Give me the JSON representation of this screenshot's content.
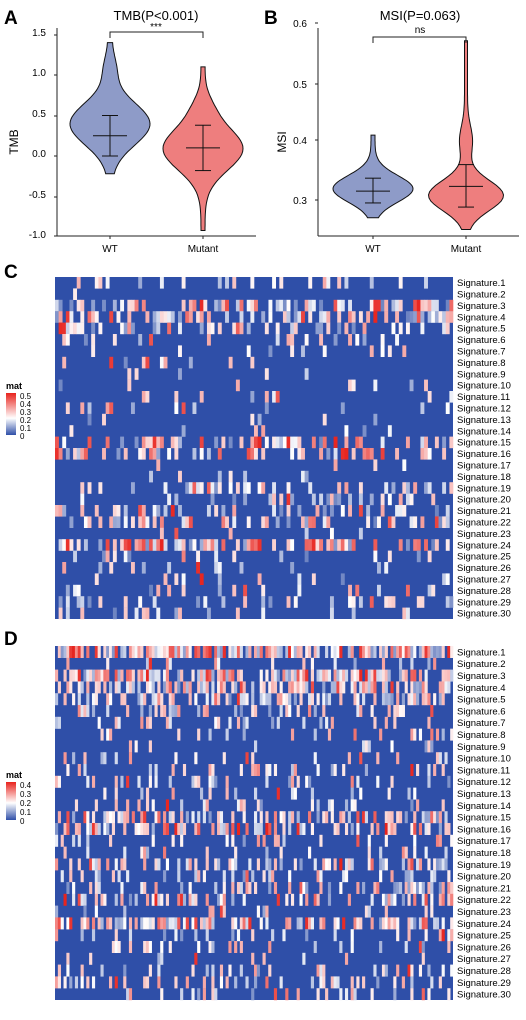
{
  "panels": {
    "A": {
      "label": "A",
      "title": "TMB(P<0.001)",
      "ylabel": "TMB",
      "sig": "***",
      "yticks": [
        "1.5",
        "1.0",
        "0.5",
        "0.0",
        "-0.5",
        "-1.0"
      ],
      "groups": [
        "WT",
        "Mutant"
      ]
    },
    "B": {
      "label": "B",
      "title": "MSI(P=0.063)",
      "ylabel": "MSI",
      "sig": "ns",
      "yticks": [
        "0.6",
        "0.5",
        "0.4",
        "0.3"
      ],
      "groups": [
        "WT",
        "Mutant"
      ]
    },
    "C": {
      "label": "C",
      "legend_title": "mat",
      "legend_ticks": [
        "0.5",
        "0.4",
        "0.3",
        "0.2",
        "0.1",
        "0"
      ]
    },
    "D": {
      "label": "D",
      "legend_title": "mat",
      "legend_ticks": [
        "0.4",
        "0.3",
        "0.2",
        "0.1",
        "0"
      ]
    }
  },
  "signatures": [
    "Signature.1",
    "Signature.2",
    "Signature.3",
    "Signature.4",
    "Signature.5",
    "Signature.6",
    "Signature.7",
    "Signature.8",
    "Signature.9",
    "Signature.10",
    "Signature.11",
    "Signature.12",
    "Signature.13",
    "Signature.14",
    "Signature.15",
    "Signature.16",
    "Signature.17",
    "Signature.18",
    "Signature.19",
    "Signature.20",
    "Signature.21",
    "Signature.22",
    "Signature.23",
    "Signature.24",
    "Signature.25",
    "Signature.26",
    "Signature.27",
    "Signature.28",
    "Signature.29",
    "Signature.30"
  ],
  "colors": {
    "wt_violin": "#8e9bc8",
    "mutant_violin": "#ee7e7e",
    "heat_low": "#2f4fa8",
    "heat_mid": "#ffffff",
    "heat_high": "#e8231d"
  },
  "chart_data": [
    {
      "type": "violin",
      "title": "TMB(P<0.001)",
      "xlabel": "",
      "ylabel": "TMB",
      "categories": [
        "WT",
        "Mutant"
      ],
      "ylim": [
        -1.0,
        1.55
      ],
      "summary": [
        {
          "group": "WT",
          "mean": 0.25,
          "sd_low": 0.0,
          "sd_high": 0.5,
          "min": -0.22,
          "max": 1.4
        },
        {
          "group": "Mutant",
          "mean": 0.1,
          "sd_low": -0.18,
          "sd_high": 0.38,
          "min": -0.92,
          "max": 1.1
        }
      ],
      "annotation": "***"
    },
    {
      "type": "violin",
      "title": "MSI(P=0.063)",
      "xlabel": "",
      "ylabel": "MSI",
      "categories": [
        "WT",
        "Mutant"
      ],
      "ylim": [
        0.265,
        0.605
      ],
      "summary": [
        {
          "group": "WT",
          "mean": 0.315,
          "sd_low": 0.295,
          "sd_high": 0.337,
          "min": 0.27,
          "max": 0.41
        },
        {
          "group": "Mutant",
          "mean": 0.323,
          "sd_low": 0.288,
          "sd_high": 0.36,
          "min": 0.25,
          "max": 0.57
        }
      ],
      "annotation": "ns"
    },
    {
      "type": "heatmap",
      "legend_title": "mat",
      "value_range": [
        0,
        0.5
      ],
      "rows": 30,
      "columns": 110
    },
    {
      "type": "heatmap",
      "legend_title": "mat",
      "value_range": [
        0,
        0.4
      ],
      "rows": 30,
      "columns": 140
    }
  ]
}
